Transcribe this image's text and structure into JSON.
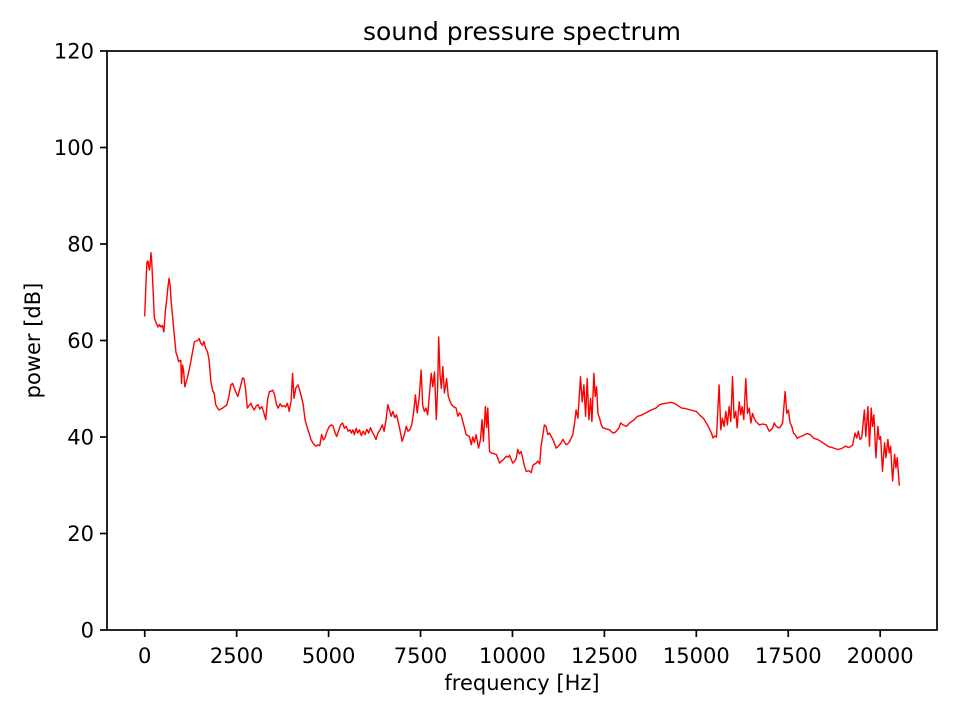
{
  "figure": {
    "background": "#ffffff",
    "text_color": "#000000",
    "spine_color": "#000000"
  },
  "chart_data": {
    "type": "line",
    "title": "sound pressure spectrum",
    "xlabel": "frequency [Hz]",
    "ylabel": "power [dB]",
    "xlim": [
      -1026,
      21545
    ],
    "ylim": [
      0,
      120
    ],
    "x_ticks": [
      0,
      2500,
      5000,
      7500,
      10000,
      12500,
      15000,
      17500,
      20000
    ],
    "y_ticks": [
      0,
      20,
      40,
      60,
      80,
      100,
      120
    ],
    "grid": false,
    "legend": null,
    "series": [
      {
        "name": "sound pressure spectrum",
        "color": "#ff0000",
        "linewidth": 1.4,
        "x": [
          0,
          30,
          60,
          90,
          110,
          130,
          150,
          170,
          190,
          230,
          260,
          300,
          330,
          360,
          400,
          440,
          480,
          520,
          560,
          600,
          630,
          660,
          690,
          720,
          760,
          800,
          850,
          890,
          920,
          950,
          980,
          1000,
          1030,
          1060,
          1090,
          1150,
          1210,
          1260,
          1300,
          1350,
          1400,
          1440,
          1480,
          1520,
          1570,
          1610,
          1660,
          1710,
          1750,
          1800,
          1850,
          1890,
          1930,
          1980,
          2020,
          2070,
          2120,
          2170,
          2230,
          2290,
          2340,
          2390,
          2440,
          2490,
          2530,
          2570,
          2620,
          2660,
          2700,
          2740,
          2790,
          2840,
          2890,
          2930,
          2980,
          3030,
          3080,
          3130,
          3180,
          3230,
          3290,
          3340,
          3390,
          3440,
          3480,
          3530,
          3580,
          3630,
          3680,
          3730,
          3780,
          3830,
          3880,
          3930,
          3980,
          4020,
          4060,
          4110,
          4170,
          4220,
          4260,
          4310,
          4360,
          4420,
          4470,
          4520,
          4570,
          4620,
          4660,
          4710,
          4760,
          4810,
          4860,
          4900,
          4960,
          5020,
          5070,
          5120,
          5170,
          5220,
          5280,
          5330,
          5380,
          5430,
          5480,
          5530,
          5580,
          5620,
          5660,
          5700,
          5750,
          5790,
          5840,
          5890,
          5940,
          5990,
          6040,
          6090,
          6140,
          6190,
          6240,
          6290,
          6340,
          6400,
          6460,
          6510,
          6560,
          6610,
          6660,
          6700,
          6750,
          6800,
          6850,
          6890,
          6940,
          7000,
          7060,
          7110,
          7160,
          7210,
          7260,
          7310,
          7360,
          7410,
          7460,
          7515,
          7560,
          7605,
          7650,
          7695,
          7745,
          7790,
          7835,
          7880,
          7930,
          7965,
          7995,
          8030,
          8065,
          8105,
          8150,
          8210,
          8255,
          8300,
          8345,
          8400,
          8470,
          8515,
          8560,
          8605,
          8650,
          8695,
          8740,
          8790,
          8830,
          8880,
          8920,
          8965,
          9010,
          9080,
          9130,
          9175,
          9210,
          9265,
          9300,
          9330,
          9375,
          9420,
          9470,
          9560,
          9650,
          9700,
          9740,
          9830,
          9880,
          9920,
          10010,
          10060,
          10100,
          10145,
          10190,
          10235,
          10330,
          10375,
          10460,
          10510,
          10560,
          10645,
          10690,
          10740,
          10780,
          10870,
          10915,
          10960,
          11005,
          11100,
          11190,
          11235,
          11325,
          11370,
          11460,
          11505,
          11550,
          11640,
          11690,
          11730,
          11780,
          11850,
          11897,
          11942,
          11988,
          12033,
          12079,
          12124,
          12160,
          12215,
          12251,
          12288,
          12324,
          12370,
          12415,
          12460,
          12550,
          12640,
          12733,
          12800,
          12897,
          12942,
          13010,
          13100,
          13200,
          13300,
          13400,
          13500,
          13600,
          13700,
          13800,
          13900,
          14000,
          14100,
          14200,
          14300,
          14400,
          14500,
          14600,
          14700,
          14800,
          14900,
          15000,
          15100,
          15200,
          15300,
          15365,
          15410,
          15456,
          15500,
          15550,
          15620,
          15665,
          15710,
          15756,
          15801,
          15846,
          15892,
          15937,
          15983,
          16028,
          16074,
          16110,
          16165,
          16210,
          16246,
          16292,
          16346,
          16392,
          16437,
          16483,
          16528,
          16574,
          16620,
          16665,
          16710,
          16800,
          16900,
          16983,
          17030,
          17074,
          17120,
          17165,
          17233,
          17278,
          17346,
          17414,
          17460,
          17505,
          17551,
          17596,
          17642,
          17687,
          17745,
          17800,
          17900,
          18000,
          18100,
          18200,
          18300,
          18400,
          18500,
          18600,
          18700,
          18850,
          18950,
          19050,
          19150,
          19250,
          19315,
          19360,
          19406,
          19450,
          19496,
          19570,
          19608,
          19665,
          19710,
          19755,
          19790,
          19828,
          19883,
          19937,
          19973,
          20010,
          20064,
          20119,
          20155,
          20210,
          20246,
          20282,
          20337,
          20391,
          20428,
          20464,
          20519
        ],
        "y": [
          65,
          71,
          76.2,
          76.5,
          75.3,
          74.6,
          76,
          78.2,
          76.5,
          70,
          64.8,
          63.8,
          63.3,
          62.8,
          63.3,
          62.8,
          63.1,
          61.8,
          66,
          68.6,
          71,
          72.9,
          71.5,
          67.9,
          64.8,
          61.5,
          57.5,
          56.6,
          55.6,
          55.8,
          55.9,
          51.1,
          54.9,
          53.5,
          50.4,
          52,
          53.9,
          56,
          57.6,
          59.7,
          59.9,
          60,
          60.4,
          59.5,
          59,
          59.8,
          58.3,
          57.6,
          55.9,
          51.5,
          49.5,
          49.1,
          46.7,
          46,
          45.6,
          45.8,
          46,
          46.3,
          46.6,
          48.4,
          50.8,
          51.1,
          50,
          49.1,
          48.4,
          49.5,
          51,
          52.2,
          52.1,
          50.1,
          46,
          46.5,
          47,
          46.2,
          45.6,
          46.4,
          46.7,
          45.8,
          46.3,
          45.3,
          43.6,
          47.7,
          49.4,
          49.5,
          49.7,
          48.8,
          46.8,
          46,
          46.9,
          46.3,
          46.5,
          46.2,
          47,
          45.3,
          47.5,
          53.2,
          48,
          50.2,
          50.8,
          49.5,
          48.4,
          46.7,
          43.5,
          41.9,
          40.8,
          39.5,
          38.8,
          38.3,
          38.1,
          38.4,
          38.2,
          40.5,
          39.4,
          39.8,
          41.2,
          42.2,
          42.5,
          42.3,
          41,
          40.1,
          41.5,
          42.5,
          42.9,
          41.8,
          42.2,
          41.2,
          41.5,
          40.8,
          41.5,
          40.5,
          41.8,
          40.8,
          41.5,
          40.3,
          41.2,
          40.5,
          41.6,
          40.8,
          41.9,
          41,
          40.3,
          39.5,
          40.8,
          41.5,
          42.5,
          41.2,
          43.5,
          46.7,
          45.5,
          44.3,
          45.3,
          44,
          44.6,
          43.2,
          41.5,
          39.1,
          40.5,
          42.2,
          41.2,
          41.5,
          42.5,
          44.9,
          48.7,
          45,
          48,
          53.9,
          46.5,
          45.3,
          46,
          44.6,
          49,
          53.2,
          50.4,
          53.5,
          43.6,
          50,
          60.7,
          53,
          50.1,
          54.6,
          49.1,
          52.1,
          48.4,
          47.5,
          46.7,
          46.3,
          46,
          44.3,
          45,
          44.5,
          43.2,
          41.9,
          40.5,
          40.3,
          40.1,
          38.4,
          40,
          38.9,
          40.5,
          37.7,
          39.5,
          43.6,
          39.1,
          46.3,
          42,
          46,
          37,
          36.7,
          36.6,
          36.4,
          34.6,
          35,
          35.2,
          36,
          35.8,
          36.2,
          34.6,
          35,
          35.5,
          37.4,
          36.5,
          37,
          33.9,
          32.9,
          33,
          32.6,
          34.2,
          34.6,
          35,
          34.4,
          38.1,
          42.5,
          42.2,
          40.5,
          40.8,
          39.5,
          37.7,
          38,
          38.8,
          39.5,
          38.4,
          38.6,
          39,
          40.5,
          42.9,
          45.6,
          43.9,
          52.5,
          47.3,
          50.8,
          44.3,
          52.1,
          43.6,
          48,
          43.2,
          53.2,
          48.4,
          50.4,
          44.9,
          43.9,
          42.5,
          41.9,
          41.7,
          41.5,
          40.8,
          41,
          41.9,
          42.9,
          42.5,
          42.2,
          43,
          43.5,
          44.3,
          44.5,
          44.9,
          45.3,
          45.7,
          46,
          46.7,
          46.9,
          47,
          47.2,
          47,
          46.5,
          46,
          45.9,
          45.7,
          45.5,
          45.3,
          44.5,
          43.8,
          42.5,
          41.6,
          40.8,
          39.8,
          40.2,
          40,
          50.8,
          41.5,
          43.9,
          42.2,
          45.3,
          42.5,
          46.3,
          43.2,
          52.5,
          43.9,
          45.3,
          41.9,
          47.3,
          44.6,
          46.3,
          43.6,
          52.1,
          44.9,
          46,
          42.9,
          44.9,
          43.9,
          43.2,
          42.9,
          42.5,
          42.7,
          42.5,
          41.2,
          41.5,
          41.8,
          42.9,
          42.3,
          41.9,
          42,
          42.9,
          49.4,
          44.9,
          45.6,
          42.9,
          42.2,
          40.8,
          40.5,
          39.7,
          40,
          40.3,
          40.7,
          40.5,
          39.7,
          39.5,
          39,
          38.5,
          38,
          37.8,
          37.4,
          37.6,
          38.1,
          37.8,
          38.3,
          40.8,
          39.8,
          41.2,
          39.5,
          39.8,
          45.6,
          40.1,
          46.3,
          38.1,
          46,
          42.2,
          44.6,
          35.7,
          42.2,
          39.5,
          40.1,
          32.9,
          38.8,
          35.7,
          39.5,
          36.7,
          38.1,
          30.9,
          36.4,
          33.6,
          35.7,
          29.9
        ]
      }
    ]
  }
}
